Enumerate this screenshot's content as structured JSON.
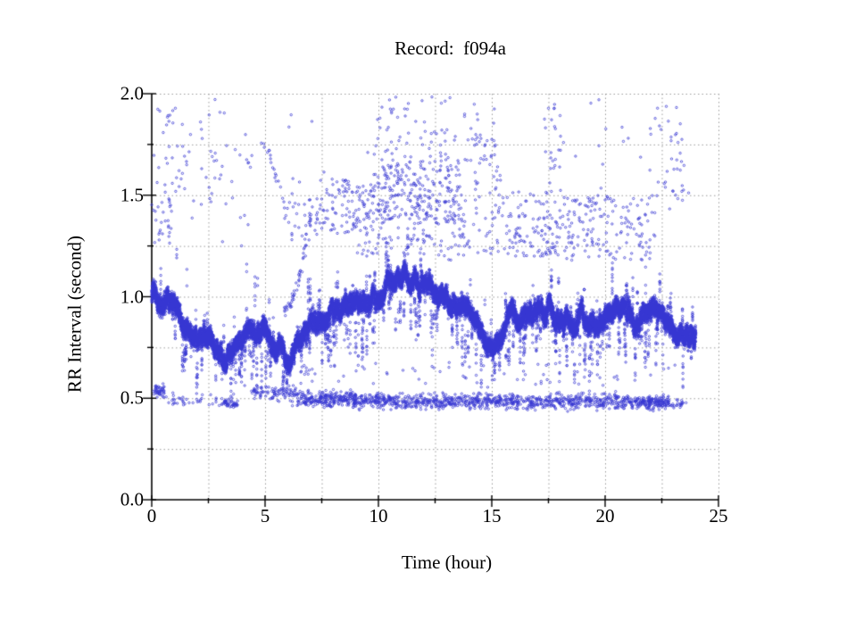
{
  "page": {
    "background": "#ffffff"
  },
  "chart_data": {
    "type": "scatter",
    "title": "Record:  f094a",
    "xlabel": "Time (hour)",
    "ylabel": "RR Interval (second)",
    "xlim": [
      0,
      25
    ],
    "ylim": [
      0.0,
      2.0
    ],
    "x_ticks": {
      "major": [
        0,
        5,
        10,
        15,
        20,
        25
      ],
      "major_labels": [
        "0",
        "5",
        "10",
        "15",
        "20",
        "25"
      ],
      "minor_step": 2.5
    },
    "y_ticks": {
      "major": [
        0.0,
        0.5,
        1.0,
        1.5,
        2.0
      ],
      "major_labels": [
        "0.0",
        "0.5",
        "1.0",
        "1.5",
        "2.0"
      ],
      "minor_step": 0.25
    },
    "grid": {
      "show": true,
      "style": "dotted",
      "color": "#9b9b9b",
      "x_step": 2.5,
      "y_step": 0.25
    },
    "axes_color": "#000000",
    "marker": {
      "shape": "open-circle",
      "radius_px": 1.2,
      "color": "#3737d2"
    },
    "data_time_range_hours": [
      0,
      24
    ],
    "seed": 20140713,
    "series": {
      "main_band": {
        "description": "dense RR tachogram band",
        "n_points": 20000,
        "hours": [
          0,
          0.5,
          1,
          1.5,
          2,
          2.5,
          3,
          3.5,
          4,
          4.5,
          5,
          5.5,
          6,
          6.5,
          7,
          7.5,
          8,
          8.5,
          9,
          9.5,
          10,
          10.5,
          11,
          11.5,
          12,
          12.5,
          13,
          13.5,
          14,
          14.5,
          15,
          15.5,
          16,
          16.5,
          17,
          17.5,
          18,
          18.5,
          19,
          19.5,
          20,
          20.5,
          21,
          21.5,
          22,
          22.5,
          23,
          23.5,
          24
        ],
        "mean": [
          1.0,
          0.97,
          0.93,
          0.88,
          0.82,
          0.77,
          0.73,
          0.69,
          0.76,
          0.84,
          0.87,
          0.76,
          0.66,
          0.8,
          0.88,
          0.91,
          0.94,
          0.96,
          0.98,
          1.0,
          1.02,
          1.06,
          1.1,
          1.08,
          1.05,
          1.02,
          1.0,
          0.96,
          0.92,
          0.8,
          0.72,
          0.86,
          0.92,
          0.88,
          0.91,
          0.95,
          0.88,
          0.87,
          0.91,
          0.88,
          0.87,
          0.91,
          0.91,
          0.88,
          0.91,
          0.89,
          0.84,
          0.84,
          0.83
        ],
        "jitter": 0.02,
        "extra_halfwidth": 0.035,
        "wander_max": 0.05,
        "wander_step": 0.012,
        "spike_prob": 0.012,
        "spike_down_fraction": 0.78,
        "spike_depth": [
          0.06,
          0.3
        ],
        "spike_len": [
          2,
          9
        ]
      },
      "lower_band_segments": [
        {
          "h": [
            0.05,
            0.55
          ],
          "v": [
            0.5,
            0.57
          ],
          "n": 45
        },
        {
          "h": [
            0.55,
            3.0
          ],
          "v": [
            0.46,
            0.53
          ],
          "n": 35
        },
        {
          "h": [
            3.1,
            3.8
          ],
          "v": [
            0.45,
            0.5
          ],
          "n": 45
        },
        {
          "h": [
            4.4,
            6.4
          ],
          "v": [
            0.48,
            0.57
          ],
          "n": 90
        },
        {
          "h": [
            6.4,
            9.0
          ],
          "v": [
            0.45,
            0.54
          ],
          "n": 260
        },
        {
          "h": [
            9.0,
            14.5
          ],
          "v": [
            0.44,
            0.53
          ],
          "n": 420
        },
        {
          "h": [
            14.5,
            20.5
          ],
          "v": [
            0.44,
            0.53
          ],
          "n": 420
        },
        {
          "h": [
            20.5,
            22.8
          ],
          "v": [
            0.44,
            0.52
          ],
          "n": 220
        },
        {
          "h": [
            22.8,
            23.6
          ],
          "v": [
            0.45,
            0.5
          ],
          "n": 25
        }
      ],
      "outlier_clusters": [
        {
          "h": [
            0.0,
            0.9
          ],
          "v": [
            1.25,
            1.5
          ],
          "n": 28
        },
        {
          "h": [
            0.1,
            1.6
          ],
          "v": [
            1.5,
            2.0
          ],
          "n": 30
        },
        {
          "h": [
            1.2,
            3.2
          ],
          "v": [
            1.45,
            1.95
          ],
          "n": 22
        },
        {
          "h": [
            2.5,
            4.6
          ],
          "v": [
            1.25,
            1.8
          ],
          "n": 20
        },
        {
          "h": [
            5.9,
            7.2
          ],
          "v": [
            1.25,
            1.48
          ],
          "n": 25
        },
        {
          "h": [
            7.2,
            9.6
          ],
          "v": [
            1.3,
            1.58
          ],
          "n": 110
        },
        {
          "h": [
            9.6,
            13.6
          ],
          "v": [
            1.38,
            1.68
          ],
          "n": 260
        },
        {
          "h": [
            9.8,
            13.4
          ],
          "v": [
            1.68,
            2.0
          ],
          "n": 55
        },
        {
          "h": [
            9.0,
            13.8
          ],
          "v": [
            1.18,
            1.4
          ],
          "n": 100
        },
        {
          "h": [
            13.6,
            14.9
          ],
          "v": [
            1.2,
            1.95
          ],
          "n": 55
        },
        {
          "h": [
            14.9,
            15.4
          ],
          "v": [
            1.5,
            1.95
          ],
          "n": 18
        },
        {
          "h": [
            14.9,
            17.6
          ],
          "v": [
            1.2,
            1.52
          ],
          "n": 110
        },
        {
          "h": [
            17.3,
            18.1
          ],
          "v": [
            1.5,
            1.95
          ],
          "n": 25
        },
        {
          "h": [
            17.6,
            19.6
          ],
          "v": [
            1.18,
            1.5
          ],
          "n": 90
        },
        {
          "h": [
            19.6,
            22.3
          ],
          "v": [
            1.18,
            1.5
          ],
          "n": 90
        },
        {
          "h": [
            21.9,
            23.6
          ],
          "v": [
            1.4,
            1.95
          ],
          "n": 40
        },
        {
          "h": [
            0.0,
            24.0
          ],
          "v": [
            1.3,
            2.0
          ],
          "n": 40
        },
        {
          "h": [
            6.5,
            14.5
          ],
          "v": [
            0.56,
            0.68
          ],
          "n": 35
        },
        {
          "h": [
            15.0,
            22.8
          ],
          "v": [
            0.56,
            0.68
          ],
          "n": 30
        }
      ],
      "trails": [
        {
          "from": [
            4.85,
            1.78
          ],
          "to": [
            5.95,
            1.38
          ],
          "bend": 0.05,
          "n": 22
        },
        {
          "from": [
            5.75,
            0.92
          ],
          "to": [
            7.05,
            1.42
          ],
          "bend": 0.12,
          "n": 50
        }
      ]
    }
  }
}
